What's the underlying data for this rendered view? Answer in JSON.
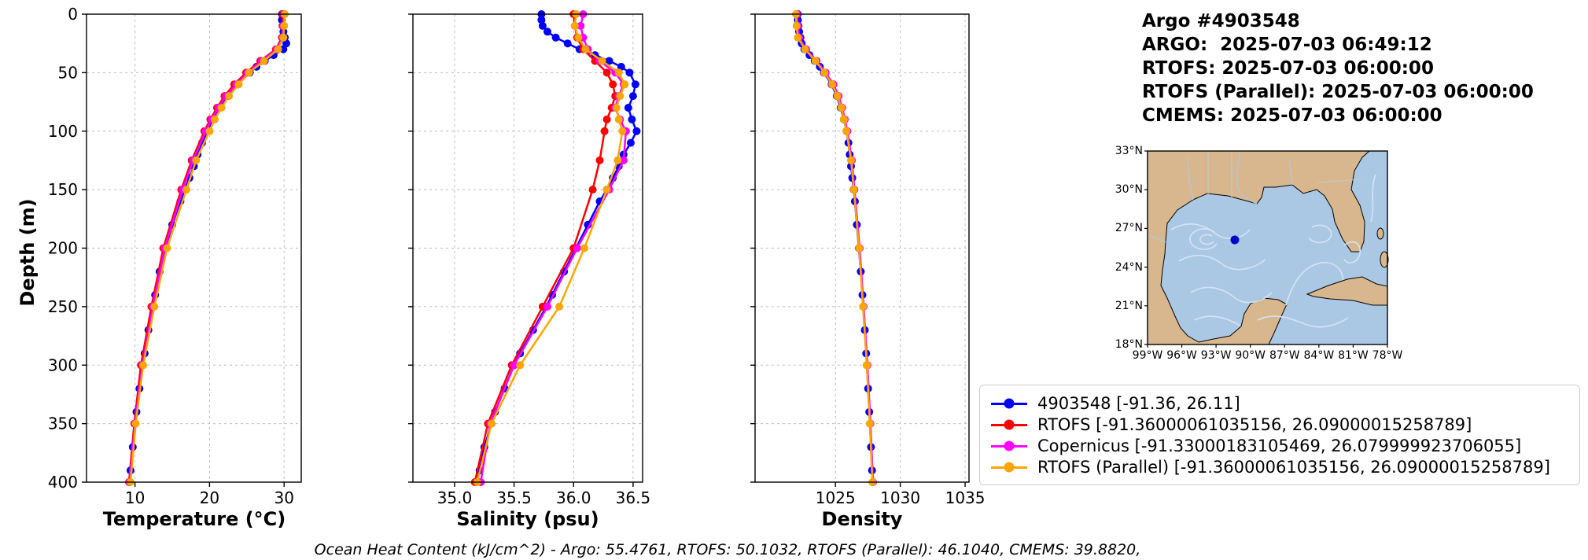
{
  "header": {
    "title": "Argo #4903548",
    "lines": [
      "ARGO:  2025-07-03 06:49:12",
      "RTOFS: 2025-07-03 06:00:00",
      "RTOFS (Parallel): 2025-07-03 06:00:00",
      "CMEMS: 2025-07-03 06:00:00"
    ]
  },
  "footer": {
    "ohc_text": "Ocean Heat Content (kJ/cm^2) - Argo: 55.4761,  RTOFS: 50.1032,  RTOFS (Parallel): 46.1040,  CMEMS: 39.8820,"
  },
  "legend": {
    "items": [
      {
        "label": "4903548 [-91.36, 26.11]",
        "color": "#0000ff"
      },
      {
        "label": "RTOFS [-91.36000061035156, 26.09000015258789]",
        "color": "#ff0000"
      },
      {
        "label": "Copernicus [-91.33000183105469, 26.079999923706055]",
        "color": "#ff00ff"
      },
      {
        "label": "RTOFS (Parallel) [-91.36000061035156, 26.09000015258789]",
        "color": "#ffa500"
      }
    ]
  },
  "map": {
    "lat_ticks": [
      "33°N",
      "30°N",
      "27°N",
      "24°N",
      "21°N",
      "18°N"
    ],
    "lat_values": [
      33,
      30,
      27,
      24,
      21,
      18
    ],
    "lon_ticks": [
      "99°W",
      "96°W",
      "93°W",
      "90°W",
      "87°W",
      "84°W",
      "81°W",
      "78°W"
    ],
    "lon_values": [
      -99,
      -96,
      -93,
      -90,
      -87,
      -84,
      -81,
      -78
    ],
    "lat_range": [
      33,
      18
    ],
    "lon_range": [
      -99,
      -78
    ],
    "float_position": {
      "lon": -91.36,
      "lat": 26.11
    },
    "land_color": "#d8b78e",
    "water_color": "#aac7e4",
    "marker_color": "#0000cd"
  },
  "axes": {
    "depth_label": "Depth (m)",
    "depth_ticks": [
      0,
      50,
      100,
      150,
      200,
      250,
      300,
      350,
      400
    ],
    "depth_lim": [
      0,
      400
    ]
  },
  "chart_data": [
    {
      "type": "line",
      "xlabel": "Temperature (°C)",
      "ylabel": "Depth (m)",
      "xlim": [
        3.5,
        32.3
      ],
      "ylim": [
        400,
        0
      ],
      "xticks": [
        10,
        20,
        30
      ],
      "xtick_labels": [
        "10",
        "20",
        "30"
      ],
      "grid": true,
      "series": [
        {
          "name": "4903548",
          "color": "#0000ff",
          "depth": [
            0,
            5,
            10,
            15,
            20,
            25,
            30,
            35,
            40,
            45,
            50,
            60,
            70,
            80,
            90,
            100,
            110,
            120,
            130,
            140,
            150,
            160,
            180,
            200,
            220,
            240,
            250,
            270,
            290,
            300,
            320,
            340,
            350,
            370,
            390,
            400
          ],
          "values": [
            29.7,
            29.7,
            29.8,
            29.9,
            30.1,
            30.3,
            29.9,
            28.6,
            27.4,
            26.3,
            25.4,
            23.8,
            22.4,
            21.3,
            20.4,
            19.7,
            19.0,
            18.4,
            17.9,
            17.3,
            16.7,
            16.1,
            15.0,
            14.1,
            13.3,
            12.7,
            12.4,
            11.8,
            11.3,
            11.0,
            10.6,
            10.2,
            10.0,
            9.7,
            9.4,
            9.3
          ]
        },
        {
          "name": "RTOFS",
          "color": "#ff0000",
          "depth": [
            0,
            10,
            20,
            30,
            40,
            50,
            60,
            70,
            80,
            90,
            100,
            125,
            150,
            200,
            250,
            300,
            350,
            400
          ],
          "values": [
            29.8,
            29.8,
            29.7,
            28.9,
            26.8,
            24.9,
            23.3,
            22.0,
            21.0,
            20.1,
            19.3,
            17.6,
            16.2,
            13.8,
            12.2,
            10.8,
            9.9,
            9.2
          ]
        },
        {
          "name": "Copernicus",
          "color": "#ff00ff",
          "depth": [
            0,
            10,
            20,
            30,
            40,
            50,
            60,
            70,
            80,
            90,
            100,
            125,
            150,
            200,
            250,
            300,
            350,
            400
          ],
          "values": [
            30.0,
            29.9,
            29.8,
            29.0,
            27.0,
            25.1,
            23.6,
            22.2,
            21.2,
            20.3,
            19.5,
            17.8,
            16.4,
            14.0,
            12.4,
            11.0,
            10.0,
            9.3
          ]
        },
        {
          "name": "RTOFS (Parallel)",
          "color": "#ffa500",
          "depth": [
            0,
            10,
            20,
            30,
            40,
            50,
            60,
            70,
            80,
            90,
            100,
            125,
            150,
            200,
            250,
            300,
            350,
            400
          ],
          "values": [
            30.1,
            30.0,
            29.9,
            29.2,
            27.3,
            25.3,
            23.9,
            22.6,
            21.6,
            20.7,
            20.0,
            18.2,
            16.9,
            14.3,
            12.6,
            11.1,
            10.1,
            9.4
          ]
        }
      ]
    },
    {
      "type": "line",
      "xlabel": "Salinity (psu)",
      "ylabel": "Depth (m)",
      "xlim": [
        34.65,
        36.58
      ],
      "ylim": [
        400,
        0
      ],
      "xticks": [
        35.0,
        35.5,
        36.0,
        36.5
      ],
      "xtick_labels": [
        "35.0",
        "35.5",
        "36.0",
        "36.5"
      ],
      "grid": true,
      "series": [
        {
          "name": "4903548",
          "color": "#0000ff",
          "depth": [
            0,
            5,
            10,
            15,
            20,
            25,
            30,
            35,
            40,
            45,
            50,
            60,
            70,
            80,
            90,
            100,
            110,
            120,
            130,
            140,
            150,
            160,
            180,
            200,
            220,
            240,
            250,
            270,
            290,
            300,
            320,
            340,
            350,
            370,
            390,
            400
          ],
          "values": [
            35.73,
            35.73,
            35.74,
            35.78,
            35.85,
            35.95,
            36.05,
            36.18,
            36.3,
            36.4,
            36.47,
            36.52,
            36.5,
            36.46,
            36.49,
            36.53,
            36.48,
            36.42,
            36.38,
            36.33,
            36.28,
            36.22,
            36.12,
            36.02,
            35.92,
            35.82,
            35.77,
            35.66,
            35.55,
            35.5,
            35.42,
            35.34,
            35.31,
            35.25,
            35.21,
            35.19
          ]
        },
        {
          "name": "RTOFS",
          "color": "#ff0000",
          "depth": [
            0,
            10,
            20,
            30,
            40,
            50,
            60,
            70,
            80,
            90,
            100,
            125,
            150,
            200,
            250,
            300,
            350,
            400
          ],
          "values": [
            36.0,
            36.01,
            36.03,
            36.08,
            36.18,
            36.28,
            36.33,
            36.35,
            36.32,
            36.28,
            36.26,
            36.22,
            36.16,
            36.0,
            35.74,
            35.48,
            35.28,
            35.17
          ]
        },
        {
          "name": "Copernicus",
          "color": "#ff00ff",
          "depth": [
            0,
            10,
            20,
            30,
            40,
            50,
            60,
            70,
            80,
            90,
            100,
            125,
            150,
            200,
            250,
            300,
            350,
            400
          ],
          "values": [
            36.08,
            36.06,
            36.08,
            36.12,
            36.22,
            36.35,
            36.42,
            36.38,
            36.35,
            36.39,
            36.44,
            36.42,
            36.3,
            36.03,
            35.78,
            35.5,
            35.3,
            35.22
          ]
        },
        {
          "name": "RTOFS (Parallel)",
          "color": "#ffa500",
          "depth": [
            0,
            10,
            20,
            30,
            40,
            50,
            60,
            70,
            80,
            90,
            100,
            125,
            150,
            200,
            250,
            300,
            350,
            400
          ],
          "values": [
            36.02,
            36.01,
            36.04,
            36.1,
            36.24,
            36.38,
            36.43,
            36.39,
            36.36,
            36.38,
            36.41,
            36.37,
            36.28,
            36.09,
            35.88,
            35.55,
            35.31,
            35.19
          ]
        }
      ]
    },
    {
      "type": "line",
      "xlabel": "Density",
      "ylabel": "Depth (m)",
      "xlim": [
        1018.8,
        1035.3
      ],
      "ylim": [
        400,
        0
      ],
      "xticks": [
        1025,
        1030,
        1035
      ],
      "xtick_labels": [
        "1025",
        "1030",
        "1035"
      ],
      "grid": true,
      "series": [
        {
          "name": "4903548",
          "color": "#0000ff",
          "depth": [
            0,
            5,
            10,
            15,
            20,
            25,
            30,
            35,
            40,
            45,
            50,
            60,
            70,
            80,
            90,
            100,
            110,
            120,
            130,
            140,
            150,
            160,
            180,
            200,
            220,
            240,
            250,
            270,
            290,
            300,
            320,
            340,
            350,
            370,
            390,
            400
          ],
          "values": [
            1022.1,
            1022.1,
            1022.15,
            1022.2,
            1022.3,
            1022.4,
            1022.6,
            1023.0,
            1023.4,
            1023.8,
            1024.1,
            1024.7,
            1025.1,
            1025.4,
            1025.65,
            1025.85,
            1026.0,
            1026.1,
            1026.2,
            1026.3,
            1026.4,
            1026.5,
            1026.65,
            1026.8,
            1026.95,
            1027.08,
            1027.14,
            1027.26,
            1027.37,
            1027.42,
            1027.52,
            1027.61,
            1027.66,
            1027.74,
            1027.82,
            1027.86
          ]
        },
        {
          "name": "RTOFS",
          "color": "#ff0000",
          "depth": [
            0,
            10,
            20,
            30,
            40,
            50,
            60,
            70,
            80,
            90,
            100,
            125,
            150,
            200,
            250,
            300,
            350,
            400
          ],
          "values": [
            1022.0,
            1022.05,
            1022.15,
            1022.7,
            1023.5,
            1024.2,
            1024.8,
            1025.2,
            1025.5,
            1025.7,
            1025.9,
            1026.25,
            1026.45,
            1026.85,
            1027.15,
            1027.45,
            1027.68,
            1027.88
          ]
        },
        {
          "name": "Copernicus",
          "color": "#ff00ff",
          "depth": [
            0,
            10,
            20,
            30,
            40,
            50,
            60,
            70,
            80,
            90,
            100,
            125,
            150,
            200,
            250,
            300,
            350,
            400
          ],
          "values": [
            1022.05,
            1022.1,
            1022.2,
            1022.75,
            1023.55,
            1024.25,
            1024.85,
            1025.25,
            1025.52,
            1025.72,
            1025.92,
            1026.27,
            1026.47,
            1026.87,
            1027.17,
            1027.47,
            1027.7,
            1027.9
          ]
        },
        {
          "name": "RTOFS (Parallel)",
          "color": "#ffa500",
          "depth": [
            0,
            10,
            20,
            30,
            40,
            50,
            60,
            70,
            80,
            90,
            100,
            125,
            150,
            200,
            250,
            300,
            350,
            400
          ],
          "values": [
            1021.95,
            1022.0,
            1022.1,
            1022.65,
            1023.45,
            1024.15,
            1024.75,
            1025.15,
            1025.45,
            1025.65,
            1025.85,
            1026.2,
            1026.42,
            1026.82,
            1027.12,
            1027.42,
            1027.65,
            1027.85
          ]
        }
      ]
    }
  ]
}
